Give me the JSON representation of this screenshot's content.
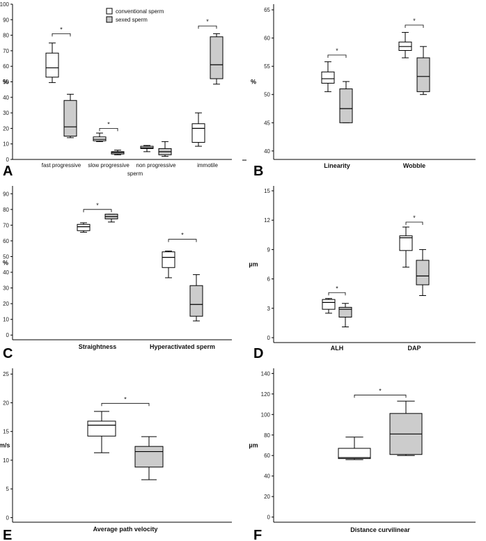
{
  "legend": {
    "conventional_label": "conventional sperm",
    "sexed_label": "sexed sperm",
    "conventional_color": "#ffffff",
    "sexed_color": "#cccccc"
  },
  "chart_data": [
    {
      "type": "box",
      "panel": "A",
      "ylabel": "%",
      "xtitle": "sperm",
      "ylim": [
        0,
        100
      ],
      "yticks": [
        0,
        10,
        20,
        30,
        40,
        50,
        60,
        70,
        80,
        90,
        100
      ],
      "categories": [
        "fast progressive",
        "slow progressive",
        "non progressive",
        "immotile"
      ],
      "series": [
        {
          "name": "conventional sperm",
          "boxes": [
            {
              "min": 49.5,
              "q1": 53,
              "median": 59,
              "q3": 68.5,
              "max": 75
            },
            {
              "min": 11.5,
              "q1": 12,
              "median": 13,
              "q3": 14.5,
              "max": 17
            },
            {
              "min": 5,
              "q1": 7,
              "median": 7.5,
              "q3": 8.5,
              "max": 9
            },
            {
              "min": 8.5,
              "q1": 11,
              "median": 20,
              "q3": 23,
              "max": 30
            }
          ]
        },
        {
          "name": "sexed sperm",
          "boxes": [
            {
              "min": 14,
              "q1": 15,
              "median": 21,
              "q3": 38,
              "max": 42
            },
            {
              "min": 3,
              "q1": 3.5,
              "median": 4.5,
              "q3": 5,
              "max": 6
            },
            {
              "min": 2,
              "q1": 3,
              "median": 5,
              "q3": 7,
              "max": 11.5
            },
            {
              "min": 48.5,
              "q1": 52,
              "median": 61,
              "q3": 79,
              "max": 81
            }
          ]
        }
      ],
      "significance": [
        {
          "category": 0,
          "level": 81,
          "label": "*"
        },
        {
          "category": 1,
          "level": 20,
          "label": "*"
        },
        {
          "category": 3,
          "level": 86,
          "label": "*"
        }
      ]
    },
    {
      "type": "box",
      "panel": "B",
      "ylabel": "%",
      "xtitle": "",
      "ylim": [
        38.5,
        66
      ],
      "yticks": [
        40,
        45,
        50,
        55,
        60,
        65
      ],
      "categories": [
        "Linearity",
        "Wobble"
      ],
      "series": [
        {
          "name": "conventional sperm",
          "boxes": [
            {
              "min": 50.5,
              "q1": 52,
              "median": 52.8,
              "q3": 54,
              "max": 55.8
            },
            {
              "min": 56.5,
              "q1": 57.8,
              "median": 58.5,
              "q3": 59.3,
              "max": 61
            }
          ]
        },
        {
          "name": "sexed sperm",
          "boxes": [
            {
              "min": 45,
              "q1": 45,
              "median": 47.5,
              "q3": 51,
              "max": 52.3
            },
            {
              "min": 50,
              "q1": 50.5,
              "median": 53.2,
              "q3": 56.5,
              "max": 58.5
            }
          ]
        }
      ],
      "significance": [
        {
          "category": 0,
          "level": 57,
          "label": "*"
        },
        {
          "category": 1,
          "level": 62.3,
          "label": "*"
        }
      ]
    },
    {
      "type": "box",
      "panel": "C",
      "ylabel": "%",
      "xtitle": "",
      "ylim": [
        -3,
        95
      ],
      "yticks": [
        0,
        10,
        20,
        30,
        40,
        50,
        60,
        70,
        80,
        90
      ],
      "categories": [
        "Straightness",
        "Hyperactivated sperm"
      ],
      "series": [
        {
          "name": "conventional sperm",
          "boxes": [
            {
              "min": 65.5,
              "q1": 66.5,
              "median": 69,
              "q3": 70.5,
              "max": 71.5
            },
            {
              "min": 36.5,
              "q1": 43,
              "median": 49.5,
              "q3": 53,
              "max": 53.5
            }
          ]
        },
        {
          "name": "sexed sperm",
          "boxes": [
            {
              "min": 72,
              "q1": 74,
              "median": 75.5,
              "q3": 77,
              "max": 77
            },
            {
              "min": 9,
              "q1": 12,
              "median": 19.5,
              "q3": 31.5,
              "max": 38.5
            }
          ]
        }
      ],
      "significance": [
        {
          "category": 0,
          "level": 80,
          "label": "*"
        },
        {
          "category": 1,
          "level": 61,
          "label": "*"
        }
      ]
    },
    {
      "type": "box",
      "panel": "D",
      "ylabel": "µm",
      "xtitle": "",
      "ylim": [
        -0.5,
        15.5
      ],
      "yticks": [
        0,
        3,
        6,
        9,
        12,
        15
      ],
      "categories": [
        "ALH",
        "DAP"
      ],
      "series": [
        {
          "name": "conventional sperm",
          "boxes": [
            {
              "min": 2.5,
              "q1": 2.9,
              "median": 3.6,
              "q3": 3.9,
              "max": 4.0
            },
            {
              "min": 7.2,
              "q1": 8.9,
              "median": 10.2,
              "q3": 10.4,
              "max": 11.3
            }
          ]
        },
        {
          "name": "sexed sperm",
          "boxes": [
            {
              "min": 1.1,
              "q1": 2.1,
              "median": 2.9,
              "q3": 3.1,
              "max": 3.5
            },
            {
              "min": 4.3,
              "q1": 5.4,
              "median": 6.3,
              "q3": 7.9,
              "max": 9.0
            }
          ]
        }
      ],
      "significance": [
        {
          "category": 0,
          "level": 4.6,
          "label": "*"
        },
        {
          "category": 1,
          "level": 11.8,
          "label": "*"
        }
      ]
    },
    {
      "type": "box",
      "panel": "E",
      "ylabel": "µm/s",
      "xtitle": "",
      "ylim": [
        -0.8,
        26
      ],
      "yticks": [
        0,
        5,
        10,
        15,
        20,
        25
      ],
      "categories": [
        "Average path velocity"
      ],
      "series": [
        {
          "name": "conventional sperm",
          "boxes": [
            {
              "min": 11.3,
              "q1": 14.2,
              "median": 16.1,
              "q3": 16.8,
              "max": 18.5
            }
          ]
        },
        {
          "name": "sexed sperm",
          "boxes": [
            {
              "min": 6.6,
              "q1": 8.8,
              "median": 11.5,
              "q3": 12.4,
              "max": 14.1
            }
          ]
        }
      ],
      "significance": [
        {
          "category": 0,
          "level": 19.9,
          "label": "*"
        }
      ]
    },
    {
      "type": "box",
      "panel": "F",
      "ylabel": "µm",
      "xtitle": "",
      "ylim": [
        -5,
        145
      ],
      "yticks": [
        0,
        20,
        40,
        60,
        80,
        100,
        120,
        140
      ],
      "categories": [
        "Distance curvilinear"
      ],
      "series": [
        {
          "name": "conventional sperm",
          "boxes": [
            {
              "min": 56,
              "q1": 57,
              "median": 58,
              "q3": 67,
              "max": 78
            }
          ]
        },
        {
          "name": "sexed sperm",
          "boxes": [
            {
              "min": 60,
              "q1": 61,
              "median": 81,
              "q3": 101,
              "max": 113
            }
          ]
        }
      ],
      "significance": [
        {
          "category": 0,
          "level": 119,
          "label": "*"
        }
      ]
    }
  ]
}
